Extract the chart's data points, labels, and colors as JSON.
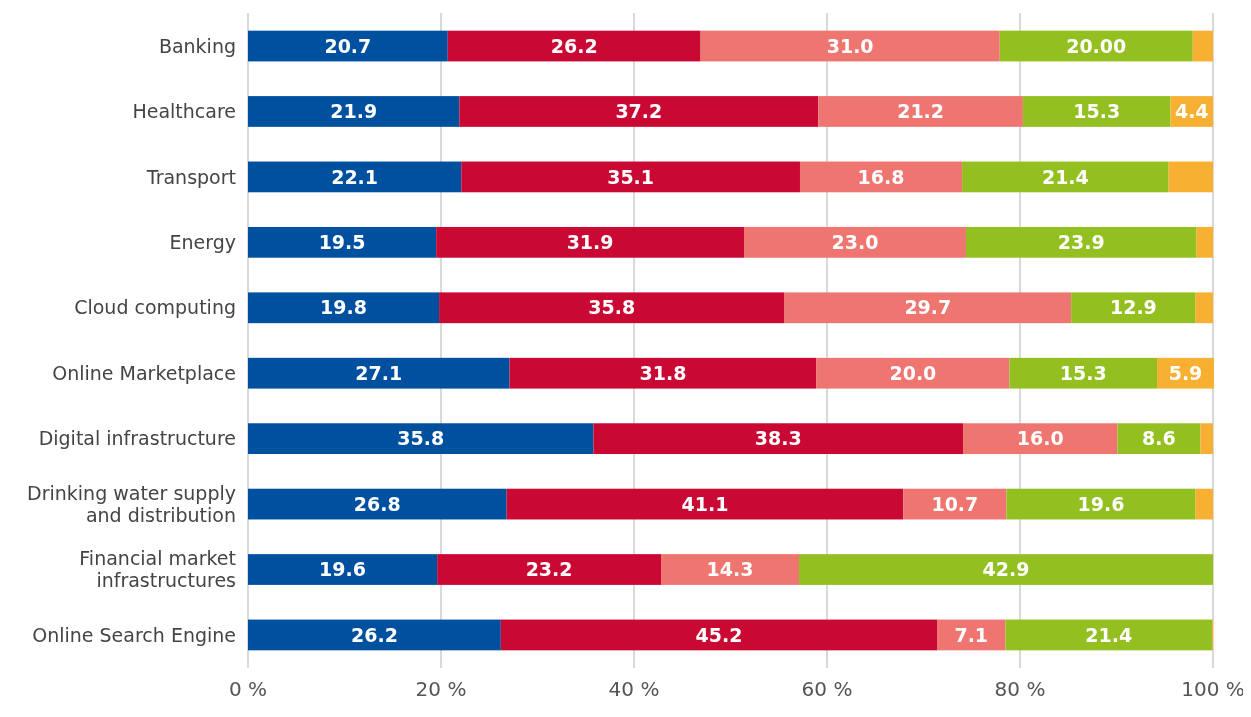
{
  "chart_data": {
    "type": "bar",
    "orientation": "horizontal",
    "stacked": true,
    "grid": "x",
    "categories": [
      "Banking",
      "Healthcare",
      "Transport",
      "Energy",
      "Cloud computing",
      "Online Marketplace",
      "Digital infrastructure",
      "Drinking water supply\nand distribution",
      "Financial market\ninfrastructures",
      "Online Search Engine"
    ],
    "xlim": [
      0,
      100
    ],
    "xticks": [
      {
        "value": 0,
        "label": "0 %"
      },
      {
        "value": 20,
        "label": "20 %"
      },
      {
        "value": 40,
        "label": "40 %"
      },
      {
        "value": 60,
        "label": "60 %"
      },
      {
        "value": 80,
        "label": "80 %"
      },
      {
        "value": 100,
        "label": "100 %"
      }
    ],
    "series": [
      {
        "color": "#0050a0",
        "values": [
          20.7,
          21.9,
          22.1,
          19.5,
          19.8,
          27.1,
          35.8,
          26.8,
          19.6,
          26.2
        ],
        "value_labels": [
          "20.7",
          "21.9",
          "22.1",
          "19.5",
          "19.8",
          "27.1",
          "35.8",
          "26.8",
          "19.6",
          "26.2"
        ]
      },
      {
        "color": "#c90834",
        "values": [
          26.2,
          37.2,
          35.1,
          31.9,
          35.8,
          31.8,
          38.3,
          41.1,
          23.2,
          45.2
        ],
        "value_labels": [
          "26.2",
          "37.2",
          "35.1",
          "31.9",
          "35.8",
          "31.8",
          "38.3",
          "41.1",
          "23.2",
          "45.2"
        ]
      },
      {
        "color": "#ee7570",
        "values": [
          31.0,
          21.2,
          16.8,
          23.0,
          29.7,
          20.0,
          16.0,
          10.7,
          14.3,
          7.1
        ],
        "value_labels": [
          "31.0",
          "21.2",
          "16.8",
          "23.0",
          "29.7",
          "20.0",
          "16.0",
          "10.7",
          "14.3",
          "7.1"
        ]
      },
      {
        "color": "#93c020",
        "values": [
          20.0,
          15.3,
          21.4,
          23.9,
          12.9,
          15.3,
          8.6,
          19.6,
          42.9,
          21.4
        ],
        "value_labels": [
          "20.00",
          "15.3",
          "21.4",
          "23.9",
          "12.9",
          "15.3",
          "8.6",
          "19.6",
          "42.9",
          "21.4"
        ]
      },
      {
        "color": "#f8b032",
        "values": [
          2.1,
          4.4,
          4.6,
          1.7,
          1.8,
          5.9,
          1.3,
          1.8,
          0,
          0.1
        ],
        "value_labels": [
          null,
          "4.4",
          null,
          null,
          null,
          "5.9",
          null,
          null,
          null,
          null
        ]
      }
    ]
  }
}
